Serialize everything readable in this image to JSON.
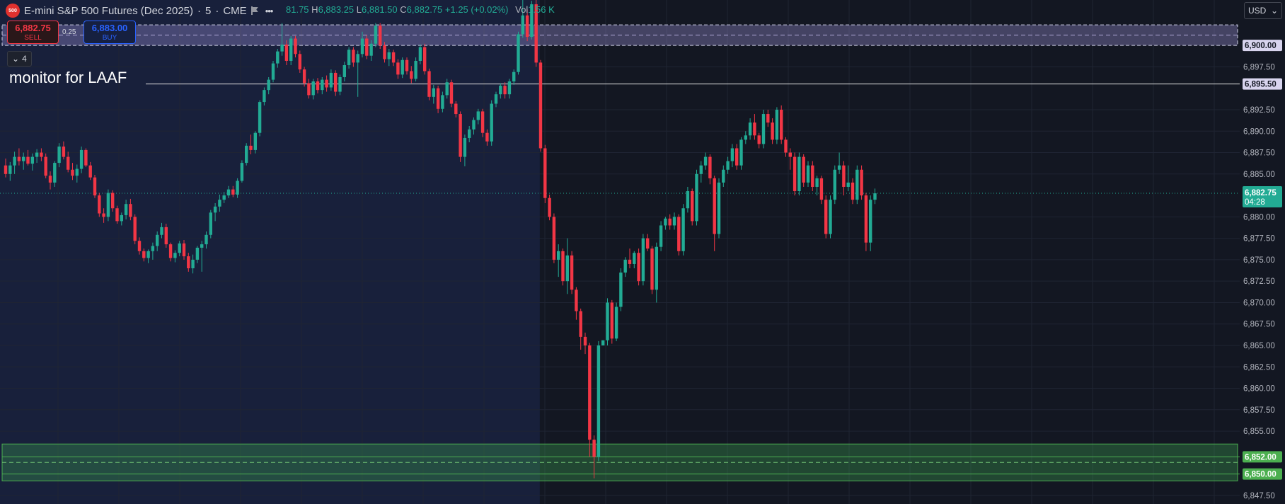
{
  "header": {
    "badge": "500",
    "symbol": "E-mini S&P 500 Futures (Dec 2025)",
    "interval_sep": "·",
    "interval": "5",
    "exchange": "CME",
    "more": "•••",
    "ohlc": {
      "open_partial": "81.75",
      "high_key": "H",
      "high": "6,883.25",
      "low_key": "L",
      "low": "6,881.50",
      "close_key": "C",
      "close": "6,882.75",
      "change": "+1.25 (+0.02%)",
      "vol_key": "Vol",
      "vol": "1.56 K"
    }
  },
  "trading": {
    "sell_price": "6,882.75",
    "sell_label": "SELL",
    "spread": "0.25",
    "buy_price": "6,883.00",
    "buy_label": "BUY"
  },
  "collapse_count": "4",
  "annotation": "monitor for LAAF",
  "currency": "USD",
  "colors": {
    "background": "#131722",
    "session_shade": "#18203b",
    "up": "#22ab94",
    "down": "#f23645",
    "grid": "#1e222d",
    "axis_text": "#b2b5be"
  },
  "chart_data": {
    "type": "candlestick",
    "ylim": [
      6846.5,
      6905.3
    ],
    "y_ticks": [
      {
        "v": 6897.5,
        "label": "6,897.50"
      },
      {
        "v": 6892.5,
        "label": "6,892.50"
      },
      {
        "v": 6890.0,
        "label": "6,890.00"
      },
      {
        "v": 6887.5,
        "label": "6,887.50"
      },
      {
        "v": 6885.0,
        "label": "6,885.00"
      },
      {
        "v": 6880.0,
        "label": "6,880.00"
      },
      {
        "v": 6877.5,
        "label": "6,877.50"
      },
      {
        "v": 6875.0,
        "label": "6,875.00"
      },
      {
        "v": 6872.5,
        "label": "6,872.50"
      },
      {
        "v": 6870.0,
        "label": "6,870.00"
      },
      {
        "v": 6867.5,
        "label": "6,867.50"
      },
      {
        "v": 6865.0,
        "label": "6,865.00"
      },
      {
        "v": 6862.5,
        "label": "6,862.50"
      },
      {
        "v": 6860.0,
        "label": "6,860.00"
      },
      {
        "v": 6857.5,
        "label": "6,857.50"
      },
      {
        "v": 6855.0,
        "label": "6,855.00"
      },
      {
        "v": 6847.5,
        "label": "6,847.50"
      }
    ],
    "price_tags": [
      {
        "v": 6900.0,
        "label": "6,900.00",
        "style": "lavender"
      },
      {
        "v": 6895.5,
        "label": "6,895.50",
        "style": "lavender"
      },
      {
        "v": 6852.0,
        "label": "6,852.00",
        "style": "green"
      },
      {
        "v": 6850.0,
        "label": "6,850.00",
        "style": "green"
      }
    ],
    "last_price": {
      "v": 6882.75,
      "label": "6,882.75",
      "countdown": "04:28"
    },
    "zones": [
      {
        "top": 6902.4,
        "bottom": 6900.0,
        "color": "lavender"
      },
      {
        "top": 6853.5,
        "bottom": 6849.2,
        "color": "green"
      }
    ],
    "hlines": [
      {
        "v": 6895.5,
        "color": "#e0e0e0",
        "label": "monitor for LAAF"
      },
      {
        "v": 6852.0,
        "color": "#4caf50"
      },
      {
        "v": 6850.0,
        "color": "#4caf50"
      }
    ],
    "candles": [
      [
        6886.0,
        6886.8,
        6884.6,
        6885.0
      ],
      [
        6885.0,
        6886.4,
        6884.2,
        6886.0
      ],
      [
        6886.0,
        6887.6,
        6885.0,
        6887.0
      ],
      [
        6887.0,
        6888.0,
        6886.0,
        6886.5
      ],
      [
        6886.5,
        6887.5,
        6885.5,
        6887.0
      ],
      [
        6887.0,
        6887.8,
        6886.0,
        6886.2
      ],
      [
        6886.2,
        6887.4,
        6885.4,
        6887.0
      ],
      [
        6887.0,
        6887.9,
        6886.3,
        6887.5
      ],
      [
        6887.5,
        6888.0,
        6886.5,
        6887.0
      ],
      [
        6887.0,
        6887.4,
        6884.5,
        6884.8
      ],
      [
        6884.8,
        6885.3,
        6883.2,
        6884.0
      ],
      [
        6884.0,
        6886.5,
        6883.5,
        6886.3
      ],
      [
        6886.3,
        6888.6,
        6885.8,
        6888.2
      ],
      [
        6888.2,
        6888.8,
        6886.7,
        6887.0
      ],
      [
        6887.0,
        6887.6,
        6885.2,
        6885.5
      ],
      [
        6885.5,
        6886.3,
        6884.3,
        6884.8
      ],
      [
        6884.8,
        6886.1,
        6884.0,
        6885.6
      ],
      [
        6885.6,
        6888.2,
        6885.1,
        6887.8
      ],
      [
        6887.8,
        6888.0,
        6885.8,
        6886.0
      ],
      [
        6886.0,
        6886.4,
        6884.3,
        6884.6
      ],
      [
        6884.6,
        6884.9,
        6882.2,
        6882.5
      ],
      [
        6882.5,
        6882.8,
        6880.0,
        6880.4
      ],
      [
        6880.4,
        6881.0,
        6879.3,
        6880.0
      ],
      [
        6880.0,
        6883.2,
        6879.5,
        6882.8
      ],
      [
        6882.8,
        6883.1,
        6880.6,
        6881.0
      ],
      [
        6881.0,
        6881.3,
        6879.2,
        6879.5
      ],
      [
        6879.5,
        6880.5,
        6879.0,
        6880.2
      ],
      [
        6880.2,
        6882.0,
        6879.7,
        6881.5
      ],
      [
        6881.5,
        6882.1,
        6879.6,
        6880.0
      ],
      [
        6880.0,
        6880.3,
        6876.8,
        6877.2
      ],
      [
        6877.2,
        6877.6,
        6875.6,
        6876.0
      ],
      [
        6876.0,
        6876.3,
        6874.8,
        6875.2
      ],
      [
        6875.2,
        6876.2,
        6874.6,
        6876.0
      ],
      [
        6876.0,
        6877.0,
        6875.0,
        6876.6
      ],
      [
        6876.6,
        6878.3,
        6876.0,
        6877.9
      ],
      [
        6877.9,
        6879.3,
        6877.5,
        6878.8
      ],
      [
        6878.8,
        6879.2,
        6876.4,
        6876.8
      ],
      [
        6876.8,
        6877.0,
        6874.8,
        6875.2
      ],
      [
        6875.2,
        6876.1,
        6874.7,
        6875.8
      ],
      [
        6875.8,
        6877.2,
        6875.4,
        6876.9
      ],
      [
        6876.9,
        6877.3,
        6875.0,
        6875.4
      ],
      [
        6875.4,
        6875.8,
        6873.6,
        6874.0
      ],
      [
        6874.0,
        6875.6,
        6873.4,
        6875.0
      ],
      [
        6875.0,
        6876.6,
        6874.6,
        6876.4
      ],
      [
        6876.4,
        6877.2,
        6873.6,
        6876.8
      ],
      [
        6876.8,
        6878.3,
        6876.3,
        6877.9
      ],
      [
        6877.9,
        6880.8,
        6877.5,
        6880.5
      ],
      [
        6880.5,
        6881.6,
        6879.5,
        6881.2
      ],
      [
        6881.2,
        6882.6,
        6880.6,
        6882.0
      ],
      [
        6882.0,
        6882.9,
        6881.6,
        6882.5
      ],
      [
        6882.5,
        6883.6,
        6882.2,
        6883.2
      ],
      [
        6883.2,
        6883.6,
        6882.3,
        6882.6
      ],
      [
        6882.6,
        6884.5,
        6882.2,
        6884.2
      ],
      [
        6884.2,
        6886.6,
        6884.0,
        6886.3
      ],
      [
        6886.3,
        6888.6,
        6886.0,
        6888.3
      ],
      [
        6888.3,
        6889.6,
        6887.3,
        6887.8
      ],
      [
        6887.8,
        6890.0,
        6887.4,
        6889.8
      ],
      [
        6889.8,
        6893.6,
        6889.4,
        6893.4
      ],
      [
        6893.4,
        6895.1,
        6893.0,
        6894.8
      ],
      [
        6894.8,
        6896.3,
        6894.3,
        6896.0
      ],
      [
        6896.0,
        6898.2,
        6895.7,
        6897.9
      ],
      [
        6897.9,
        6899.6,
        6897.4,
        6899.3
      ],
      [
        6899.3,
        6902.6,
        6898.8,
        6900.1
      ],
      [
        6900.1,
        6900.6,
        6897.7,
        6898.2
      ],
      [
        6898.2,
        6901.1,
        6897.7,
        6900.8
      ],
      [
        6900.8,
        6901.1,
        6898.6,
        6899.0
      ],
      [
        6899.0,
        6899.4,
        6896.8,
        6897.2
      ],
      [
        6897.2,
        6897.5,
        6895.2,
        6895.6
      ],
      [
        6895.6,
        6896.1,
        6893.8,
        6894.2
      ],
      [
        6894.2,
        6896.1,
        6893.7,
        6895.8
      ],
      [
        6895.8,
        6896.2,
        6894.4,
        6894.8
      ],
      [
        6894.8,
        6896.3,
        6894.3,
        6896.0
      ],
      [
        6896.0,
        6896.5,
        6894.6,
        6895.1
      ],
      [
        6895.1,
        6897.2,
        6894.7,
        6896.8
      ],
      [
        6896.8,
        6897.1,
        6894.1,
        6894.6
      ],
      [
        6894.6,
        6896.6,
        6894.2,
        6896.3
      ],
      [
        6896.3,
        6898.1,
        6895.8,
        6897.7
      ],
      [
        6897.7,
        6899.8,
        6897.3,
        6899.5
      ],
      [
        6899.5,
        6899.8,
        6897.5,
        6898.0
      ],
      [
        6898.0,
        6899.4,
        6894.0,
        6899.0
      ],
      [
        6899.0,
        6901.6,
        6898.6,
        6900.8
      ],
      [
        6900.8,
        6901.2,
        6898.4,
        6898.8
      ],
      [
        6898.8,
        6900.6,
        6898.2,
        6900.2
      ],
      [
        6900.2,
        6902.6,
        6899.8,
        6902.3
      ],
      [
        6902.3,
        6902.6,
        6899.6,
        6900.0
      ],
      [
        6900.0,
        6900.4,
        6898.0,
        6898.4
      ],
      [
        6898.4,
        6899.6,
        6897.6,
        6899.2
      ],
      [
        6899.2,
        6899.5,
        6897.6,
        6898.0
      ],
      [
        6898.0,
        6898.4,
        6896.1,
        6896.6
      ],
      [
        6896.6,
        6898.6,
        6896.2,
        6898.3
      ],
      [
        6898.3,
        6898.6,
        6896.6,
        6897.0
      ],
      [
        6897.0,
        6897.6,
        6895.6,
        6896.1
      ],
      [
        6896.1,
        6898.6,
        6895.8,
        6898.2
      ],
      [
        6898.2,
        6900.1,
        6897.8,
        6899.8
      ],
      [
        6899.8,
        6900.2,
        6896.6,
        6897.0
      ],
      [
        6897.0,
        6897.3,
        6893.6,
        6894.0
      ],
      [
        6894.0,
        6895.4,
        6893.2,
        6895.0
      ],
      [
        6895.0,
        6895.3,
        6892.1,
        6892.6
      ],
      [
        6892.6,
        6894.6,
        6892.2,
        6894.2
      ],
      [
        6894.2,
        6896.1,
        6893.8,
        6895.7
      ],
      [
        6895.7,
        6896.0,
        6892.8,
        6893.2
      ],
      [
        6893.2,
        6893.5,
        6891.6,
        6892.0
      ],
      [
        6892.0,
        6892.3,
        6886.4,
        6887.0
      ],
      [
        6887.0,
        6889.6,
        6885.9,
        6889.2
      ],
      [
        6889.2,
        6890.6,
        6888.7,
        6890.2
      ],
      [
        6890.2,
        6891.6,
        6889.6,
        6891.3
      ],
      [
        6891.3,
        6892.6,
        6890.8,
        6892.3
      ],
      [
        6892.3,
        6892.6,
        6889.3,
        6889.8
      ],
      [
        6889.8,
        6890.2,
        6888.3,
        6888.8
      ],
      [
        6888.8,
        6893.6,
        6888.3,
        6893.2
      ],
      [
        6893.2,
        6894.6,
        6892.8,
        6894.3
      ],
      [
        6894.3,
        6895.6,
        6893.8,
        6895.3
      ],
      [
        6895.3,
        6895.7,
        6893.8,
        6894.3
      ],
      [
        6894.3,
        6896.1,
        6893.8,
        6895.8
      ],
      [
        6895.8,
        6897.2,
        6895.4,
        6896.9
      ],
      [
        6896.9,
        6901.6,
        6896.6,
        6901.3
      ],
      [
        6901.3,
        6905.3,
        6900.9,
        6903.5
      ],
      [
        6903.5,
        6904.2,
        6900.5,
        6901.0
      ],
      [
        6901.0,
        6905.2,
        6900.7,
        6904.8
      ],
      [
        6904.8,
        6905.3,
        6897.5,
        6898.0
      ],
      [
        6898.0,
        6898.3,
        6887.6,
        6888.0
      ],
      [
        6888.0,
        6888.4,
        6881.6,
        6882.2
      ],
      [
        6882.2,
        6882.6,
        6879.6,
        6880.0
      ],
      [
        6880.0,
        6880.4,
        6874.6,
        6875.0
      ],
      [
        6875.0,
        6876.8,
        6873.0,
        6876.0
      ],
      [
        6876.0,
        6876.3,
        6872.0,
        6872.5
      ],
      [
        6872.5,
        6877.5,
        6871.0,
        6875.5
      ],
      [
        6875.5,
        6876.0,
        6871.0,
        6871.5
      ],
      [
        6871.5,
        6871.8,
        6868.0,
        6869.0
      ],
      [
        6869.0,
        6869.3,
        6864.5,
        6866.0
      ],
      [
        6866.0,
        6866.5,
        6864.0,
        6865.0
      ],
      [
        6865.0,
        6865.3,
        6852.0,
        6854.0
      ],
      [
        6854.0,
        6854.5,
        6849.5,
        6852.0
      ],
      [
        6852.0,
        6865.5,
        6851.5,
        6865.0
      ],
      [
        6865.0,
        6865.6,
        6865.0,
        6865.6
      ],
      [
        6865.6,
        6870.5,
        6865.0,
        6870.0
      ],
      [
        6870.0,
        6870.3,
        6865.2,
        6865.8
      ],
      [
        6865.8,
        6870.0,
        6865.5,
        6869.5
      ],
      [
        6869.5,
        6874.0,
        6869.0,
        6873.5
      ],
      [
        6873.5,
        6875.3,
        6873.0,
        6875.0
      ],
      [
        6875.0,
        6876.3,
        6874.0,
        6874.5
      ],
      [
        6874.5,
        6876.0,
        6874.0,
        6875.8
      ],
      [
        6875.8,
        6876.3,
        6872.0,
        6872.5
      ],
      [
        6872.5,
        6878.0,
        6872.0,
        6877.5
      ],
      [
        6877.5,
        6878.0,
        6876.0,
        6876.3
      ],
      [
        6876.3,
        6876.6,
        6871.0,
        6871.5
      ],
      [
        6871.5,
        6877.0,
        6870.0,
        6876.5
      ],
      [
        6876.5,
        6879.5,
        6876.0,
        6879.0
      ],
      [
        6879.0,
        6880.0,
        6878.5,
        6879.8
      ],
      [
        6879.8,
        6880.3,
        6878.5,
        6879.0
      ],
      [
        6879.0,
        6880.5,
        6878.5,
        6880.0
      ],
      [
        6880.0,
        6880.3,
        6875.5,
        6876.0
      ],
      [
        6876.0,
        6881.5,
        6875.5,
        6881.0
      ],
      [
        6881.0,
        6883.5,
        6880.5,
        6883.0
      ],
      [
        6883.0,
        6883.3,
        6879.0,
        6879.5
      ],
      [
        6879.5,
        6885.5,
        6879.0,
        6885.0
      ],
      [
        6885.0,
        6886.5,
        6884.0,
        6886.0
      ],
      [
        6886.0,
        6887.5,
        6885.5,
        6887.0
      ],
      [
        6887.0,
        6887.3,
        6883.8,
        6884.5
      ],
      [
        6884.5,
        6884.8,
        6876.0,
        6878.0
      ],
      [
        6878.0,
        6884.5,
        6877.5,
        6884.0
      ],
      [
        6884.0,
        6886.0,
        6883.5,
        6885.5
      ],
      [
        6885.5,
        6887.0,
        6885.0,
        6886.5
      ],
      [
        6886.5,
        6888.5,
        6885.8,
        6888.0
      ],
      [
        6888.0,
        6888.5,
        6885.5,
        6886.0
      ],
      [
        6886.0,
        6889.3,
        6885.5,
        6889.0
      ],
      [
        6889.0,
        6890.0,
        6888.5,
        6889.5
      ],
      [
        6889.5,
        6891.5,
        6889.0,
        6891.0
      ],
      [
        6891.0,
        6892.0,
        6889.0,
        6889.5
      ],
      [
        6889.5,
        6889.8,
        6888.0,
        6888.5
      ],
      [
        6888.5,
        6892.5,
        6888.0,
        6892.0
      ],
      [
        6892.0,
        6892.5,
        6890.5,
        6891.0
      ],
      [
        6891.0,
        6891.5,
        6888.5,
        6889.0
      ],
      [
        6889.0,
        6892.8,
        6888.5,
        6892.5
      ],
      [
        6892.5,
        6893.0,
        6888.5,
        6889.0
      ],
      [
        6889.0,
        6889.3,
        6887.0,
        6887.5
      ],
      [
        6887.5,
        6888.0,
        6885.5,
        6887.0
      ],
      [
        6887.0,
        6887.5,
        6882.5,
        6883.0
      ],
      [
        6883.0,
        6887.5,
        6882.5,
        6887.0
      ],
      [
        6887.0,
        6887.3,
        6883.5,
        6884.0
      ],
      [
        6884.0,
        6886.5,
        6883.5,
        6886.0
      ],
      [
        6886.0,
        6886.5,
        6883.0,
        6883.5
      ],
      [
        6883.5,
        6884.8,
        6882.5,
        6884.5
      ],
      [
        6884.5,
        6884.8,
        6881.5,
        6882.0
      ],
      [
        6882.0,
        6882.5,
        6877.5,
        6878.0
      ],
      [
        6878.0,
        6882.5,
        6877.5,
        6882.0
      ],
      [
        6882.0,
        6886.0,
        6881.5,
        6885.5
      ],
      [
        6885.5,
        6887.5,
        6885.0,
        6886.0
      ],
      [
        6886.0,
        6886.5,
        6882.5,
        6883.5
      ],
      [
        6883.5,
        6886.0,
        6883.0,
        6884.0
      ],
      [
        6884.0,
        6884.5,
        6881.5,
        6882.0
      ],
      [
        6882.0,
        6886.0,
        6881.5,
        6885.5
      ],
      [
        6885.5,
        6886.0,
        6882.0,
        6882.5
      ],
      [
        6882.5,
        6882.8,
        6876.0,
        6877.0
      ],
      [
        6877.0,
        6882.5,
        6876.0,
        6882.0
      ],
      [
        6882.0,
        6883.3,
        6881.5,
        6882.75
      ]
    ],
    "shaded_session_candles": 120
  }
}
